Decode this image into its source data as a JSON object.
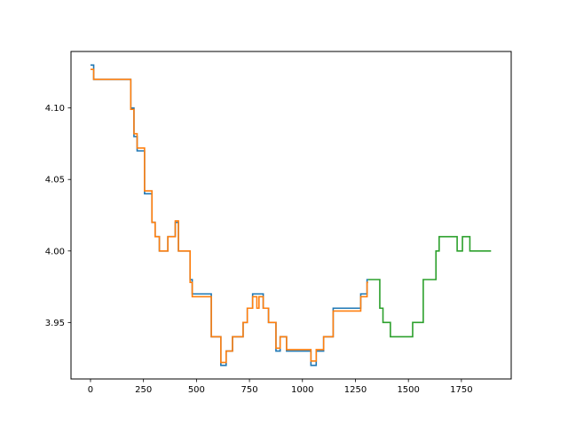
{
  "chart_data": {
    "type": "line",
    "title": "",
    "xlabel": "",
    "ylabel": "",
    "xlim": [
      -92,
      1985
    ],
    "ylim": [
      3.9105,
      4.1395
    ],
    "grid": false,
    "legend": "none",
    "x_ticks": [
      0,
      250,
      500,
      750,
      1000,
      1250,
      1500,
      1750
    ],
    "x_tick_labels": [
      "0",
      "250",
      "500",
      "750",
      "1000",
      "1250",
      "1500",
      "1750"
    ],
    "y_ticks": [
      3.95,
      4.0,
      4.05,
      4.1
    ],
    "y_tick_labels": [
      "3.95",
      "4.00",
      "4.05",
      "4.10"
    ],
    "series": [
      {
        "color": "#1f77b4",
        "step": "post",
        "points": [
          [
            0,
            4.13
          ],
          [
            15,
            4.12
          ],
          [
            190,
            4.1
          ],
          [
            205,
            4.08
          ],
          [
            220,
            4.07
          ],
          [
            255,
            4.04
          ],
          [
            290,
            4.02
          ],
          [
            305,
            4.01
          ],
          [
            325,
            4.0
          ],
          [
            365,
            4.01
          ],
          [
            400,
            4.02
          ],
          [
            415,
            4.0
          ],
          [
            470,
            3.98
          ],
          [
            480,
            3.97
          ],
          [
            570,
            3.94
          ],
          [
            615,
            3.92
          ],
          [
            640,
            3.93
          ],
          [
            670,
            3.94
          ],
          [
            720,
            3.95
          ],
          [
            740,
            3.96
          ],
          [
            765,
            3.97
          ],
          [
            815,
            3.96
          ],
          [
            840,
            3.95
          ],
          [
            875,
            3.93
          ],
          [
            895,
            3.94
          ],
          [
            925,
            3.93
          ],
          [
            1040,
            3.92
          ],
          [
            1065,
            3.93
          ],
          [
            1100,
            3.94
          ],
          [
            1145,
            3.96
          ],
          [
            1275,
            3.97
          ],
          [
            1305,
            3.98
          ],
          [
            1310,
            3.98
          ]
        ]
      },
      {
        "color": "#ff7f0e",
        "step": "post",
        "points": [
          [
            0,
            4.127
          ],
          [
            15,
            4.12
          ],
          [
            190,
            4.099
          ],
          [
            205,
            4.082
          ],
          [
            220,
            4.072
          ],
          [
            255,
            4.042
          ],
          [
            290,
            4.02
          ],
          [
            305,
            4.01
          ],
          [
            325,
            4.0
          ],
          [
            365,
            4.01
          ],
          [
            400,
            4.021
          ],
          [
            415,
            4.0
          ],
          [
            470,
            3.978
          ],
          [
            480,
            3.968
          ],
          [
            570,
            3.94
          ],
          [
            615,
            3.922
          ],
          [
            640,
            3.93
          ],
          [
            670,
            3.94
          ],
          [
            720,
            3.95
          ],
          [
            740,
            3.96
          ],
          [
            765,
            3.968
          ],
          [
            785,
            3.96
          ],
          [
            795,
            3.968
          ],
          [
            815,
            3.96
          ],
          [
            840,
            3.95
          ],
          [
            875,
            3.932
          ],
          [
            895,
            3.94
          ],
          [
            925,
            3.931
          ],
          [
            1040,
            3.923
          ],
          [
            1065,
            3.931
          ],
          [
            1100,
            3.94
          ],
          [
            1145,
            3.958
          ],
          [
            1275,
            3.968
          ],
          [
            1305,
            3.978
          ],
          [
            1310,
            3.978
          ]
        ]
      },
      {
        "color": "#2ca02c",
        "step": "post",
        "points": [
          [
            1310,
            3.98
          ],
          [
            1365,
            3.96
          ],
          [
            1380,
            3.95
          ],
          [
            1415,
            3.94
          ],
          [
            1520,
            3.95
          ],
          [
            1570,
            3.98
          ],
          [
            1630,
            4.0
          ],
          [
            1645,
            4.01
          ],
          [
            1730,
            4.0
          ],
          [
            1755,
            4.01
          ],
          [
            1790,
            4.0
          ],
          [
            1890,
            4.0
          ]
        ]
      }
    ]
  }
}
